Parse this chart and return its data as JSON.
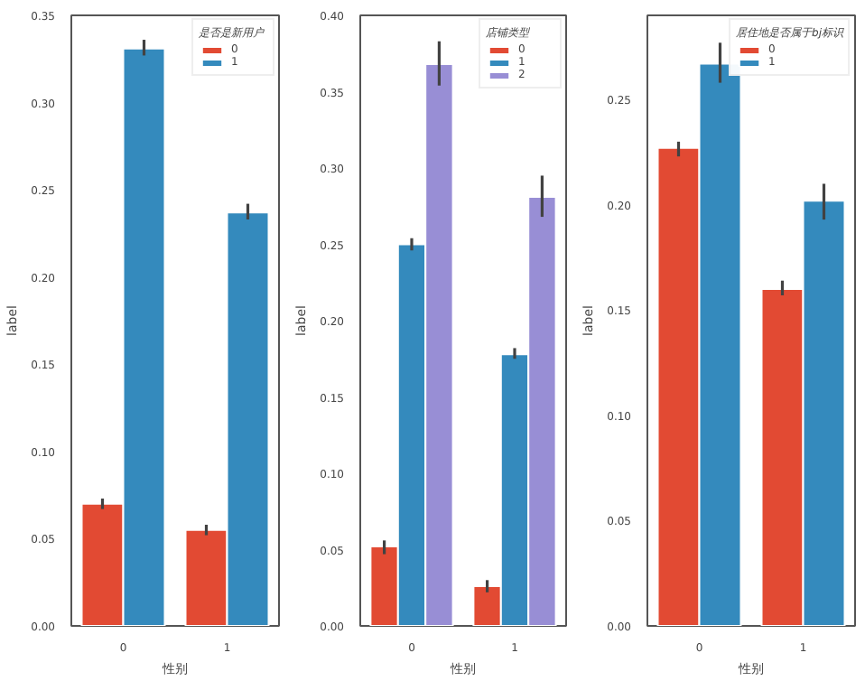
{
  "chart_data": [
    {
      "type": "bar",
      "categories": [
        "0",
        "1"
      ],
      "xlabel": "性别",
      "ylabel": "label",
      "legend_title": "是否是新用户",
      "legend": "top right",
      "ylim": [
        0,
        0.35
      ],
      "yticks": [
        {
          "value": 0,
          "label": "0.00"
        },
        0.05,
        {
          "value": 0.1,
          "label": "0.10"
        },
        0.15,
        {
          "value": 0.2,
          "label": "0.20"
        },
        0.25,
        {
          "value": 0.3,
          "label": "0.30"
        },
        0.35
      ],
      "series": [
        {
          "name": "0",
          "color": "#e24a33",
          "values": [
            0.07,
            0.055
          ],
          "errors": [
            [
              0.067,
              0.073
            ],
            [
              0.052,
              0.058
            ]
          ]
        },
        {
          "name": "1",
          "color": "#348abd",
          "values": [
            0.331,
            0.237
          ],
          "errors": [
            [
              0.327,
              0.336
            ],
            [
              0.233,
              0.242
            ]
          ]
        }
      ]
    },
    {
      "type": "bar",
      "categories": [
        "0",
        "1"
      ],
      "xlabel": "性别",
      "ylabel": "label",
      "legend_title": "店铺类型",
      "legend": "top right",
      "ylim": [
        0,
        0.4
      ],
      "yticks": [
        {
          "value": 0,
          "label": "0.00"
        },
        0.05,
        {
          "value": 0.1,
          "label": "0.10"
        },
        0.15,
        {
          "value": 0.2,
          "label": "0.20"
        },
        0.25,
        {
          "value": 0.3,
          "label": "0.30"
        },
        0.35,
        {
          "value": 0.4,
          "label": "0.40"
        }
      ],
      "series": [
        {
          "name": "0",
          "color": "#e24a33",
          "values": [
            0.052,
            0.026
          ],
          "errors": [
            [
              0.047,
              0.056
            ],
            [
              0.022,
              0.03
            ]
          ]
        },
        {
          "name": "1",
          "color": "#348abd",
          "values": [
            0.25,
            0.178
          ],
          "errors": [
            [
              0.246,
              0.254
            ],
            [
              0.175,
              0.182
            ]
          ]
        },
        {
          "name": "2",
          "color": "#988ed5",
          "values": [
            0.368,
            0.281
          ],
          "errors": [
            [
              0.354,
              0.383
            ],
            [
              0.268,
              0.295
            ]
          ]
        }
      ]
    },
    {
      "type": "bar",
      "categories": [
        "0",
        "1"
      ],
      "xlabel": "性别",
      "ylabel": "label",
      "legend_title": "居住地是否属于bj标识",
      "legend": "top right",
      "ylim": [
        0,
        0.29
      ],
      "yticks": [
        {
          "value": 0,
          "label": "0.00"
        },
        0.05,
        {
          "value": 0.1,
          "label": "0.10"
        },
        0.15,
        {
          "value": 0.2,
          "label": "0.20"
        },
        0.25
      ],
      "series": [
        {
          "name": "0",
          "color": "#e24a33",
          "values": [
            0.227,
            0.16
          ],
          "errors": [
            [
              0.223,
              0.23
            ],
            [
              0.157,
              0.164
            ]
          ]
        },
        {
          "name": "1",
          "color": "#348abd",
          "values": [
            0.267,
            0.202
          ],
          "errors": [
            [
              0.258,
              0.277
            ],
            [
              0.193,
              0.21
            ]
          ]
        }
      ]
    }
  ]
}
